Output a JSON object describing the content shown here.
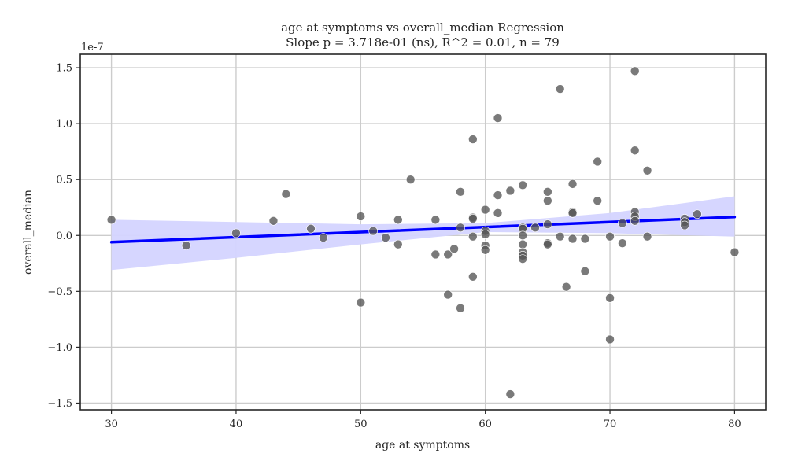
{
  "chart_data": {
    "type": "scatter",
    "title": "age at symptoms vs overall_median Regression",
    "subtitle": "Slope p = 3.718e-01 (ns), R^2 = 0.01, n = 79",
    "xlabel": "age at symptoms",
    "ylabel": "overall_median",
    "y_offset_label": "1e-7",
    "y_scale": 1e-07,
    "xlim": [
      27.5,
      82.5
    ],
    "ylim": [
      -1.56,
      1.62
    ],
    "x_ticks": [
      30,
      40,
      50,
      60,
      70,
      80
    ],
    "y_ticks": [
      -1.5,
      -1.0,
      -0.5,
      0.0,
      0.5,
      1.0,
      1.5
    ],
    "x_tick_labels": [
      "30",
      "40",
      "50",
      "60",
      "70",
      "80"
    ],
    "y_tick_labels": [
      "−1.5",
      "−1.0",
      "−0.5",
      "0.0",
      "0.5",
      "1.0",
      "1.5"
    ],
    "grid": true,
    "colors": {
      "points": "#555555",
      "regression_line": "#0000ff",
      "confidence_band": "#d4d4ff",
      "grid": "#cccccc",
      "axes": "#262626"
    },
    "points": [
      {
        "x": 30,
        "y": 0.14
      },
      {
        "x": 36,
        "y": -0.09
      },
      {
        "x": 40,
        "y": 0.02
      },
      {
        "x": 43,
        "y": 0.13
      },
      {
        "x": 44,
        "y": 0.37
      },
      {
        "x": 46,
        "y": 0.06
      },
      {
        "x": 47,
        "y": -0.02
      },
      {
        "x": 50,
        "y": 0.17
      },
      {
        "x": 50,
        "y": -0.6
      },
      {
        "x": 51,
        "y": 0.04
      },
      {
        "x": 52,
        "y": -0.02
      },
      {
        "x": 53,
        "y": 0.14
      },
      {
        "x": 53,
        "y": -0.08
      },
      {
        "x": 54,
        "y": 0.5
      },
      {
        "x": 56,
        "y": 0.14
      },
      {
        "x": 56,
        "y": -0.17
      },
      {
        "x": 57,
        "y": -0.17
      },
      {
        "x": 57,
        "y": -0.53
      },
      {
        "x": 57.5,
        "y": -0.12
      },
      {
        "x": 58,
        "y": 0.39
      },
      {
        "x": 58,
        "y": 0.07
      },
      {
        "x": 58,
        "y": -0.65
      },
      {
        "x": 59,
        "y": 0.86
      },
      {
        "x": 59,
        "y": 0.16
      },
      {
        "x": 59,
        "y": 0.15
      },
      {
        "x": 59,
        "y": -0.01
      },
      {
        "x": 59,
        "y": -0.37
      },
      {
        "x": 60,
        "y": 0.23
      },
      {
        "x": 60,
        "y": 0.04
      },
      {
        "x": 60,
        "y": 0.01
      },
      {
        "x": 60,
        "y": -0.09
      },
      {
        "x": 60,
        "y": -0.13
      },
      {
        "x": 61,
        "y": 1.05
      },
      {
        "x": 61,
        "y": 0.36
      },
      {
        "x": 61,
        "y": 0.2
      },
      {
        "x": 62,
        "y": 0.4
      },
      {
        "x": 62,
        "y": -1.42
      },
      {
        "x": 63,
        "y": 0.45
      },
      {
        "x": 63,
        "y": 0.07
      },
      {
        "x": 63,
        "y": 0.06
      },
      {
        "x": 63,
        "y": 0.0
      },
      {
        "x": 63,
        "y": -0.08
      },
      {
        "x": 63,
        "y": -0.15
      },
      {
        "x": 63,
        "y": -0.18
      },
      {
        "x": 63,
        "y": -0.21
      },
      {
        "x": 64,
        "y": 0.07
      },
      {
        "x": 65,
        "y": 0.39
      },
      {
        "x": 65,
        "y": 0.31
      },
      {
        "x": 65,
        "y": 0.1
      },
      {
        "x": 65,
        "y": -0.07
      },
      {
        "x": 65,
        "y": -0.08
      },
      {
        "x": 66,
        "y": 1.31
      },
      {
        "x": 66,
        "y": -0.01
      },
      {
        "x": 66.5,
        "y": -0.46
      },
      {
        "x": 67,
        "y": 0.46
      },
      {
        "x": 67,
        "y": 0.21
      },
      {
        "x": 67,
        "y": 0.2
      },
      {
        "x": 67,
        "y": -0.03
      },
      {
        "x": 68,
        "y": -0.03
      },
      {
        "x": 68,
        "y": -0.32
      },
      {
        "x": 69,
        "y": 0.66
      },
      {
        "x": 69,
        "y": 0.31
      },
      {
        "x": 70,
        "y": -0.01
      },
      {
        "x": 70,
        "y": -0.56
      },
      {
        "x": 70,
        "y": -0.93
      },
      {
        "x": 71,
        "y": 0.11
      },
      {
        "x": 71,
        "y": -0.07
      },
      {
        "x": 72,
        "y": 1.47
      },
      {
        "x": 72,
        "y": 0.76
      },
      {
        "x": 72,
        "y": 0.21
      },
      {
        "x": 72,
        "y": 0.17
      },
      {
        "x": 72,
        "y": 0.13
      },
      {
        "x": 73,
        "y": 0.58
      },
      {
        "x": 73,
        "y": -0.01
      },
      {
        "x": 76,
        "y": 0.15
      },
      {
        "x": 76,
        "y": 0.12
      },
      {
        "x": 76,
        "y": 0.09
      },
      {
        "x": 77,
        "y": 0.19
      },
      {
        "x": 80,
        "y": -0.15
      }
    ],
    "regression_line": {
      "x": [
        30,
        80
      ],
      "y": [
        -0.06,
        0.165
      ]
    },
    "confidence_band": {
      "x": [
        30,
        40,
        50,
        60,
        70,
        80
      ],
      "upper": [
        0.14,
        0.12,
        0.1,
        0.11,
        0.2,
        0.35
      ],
      "lower": [
        -0.31,
        -0.2,
        -0.08,
        0.03,
        0.02,
        -0.01
      ]
    }
  }
}
